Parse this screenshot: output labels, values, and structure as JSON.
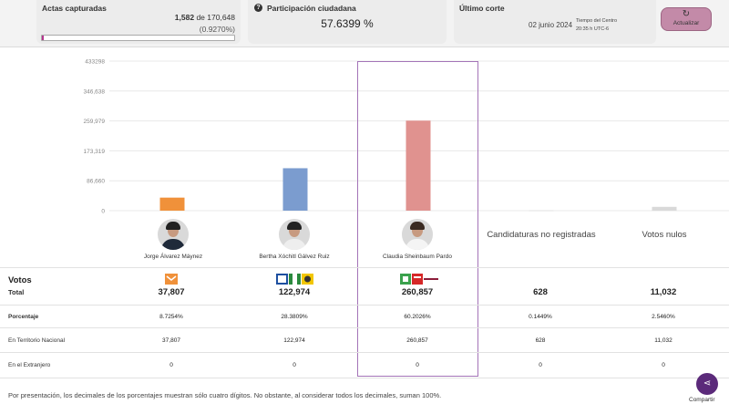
{
  "header": {
    "actas": {
      "title": "Actas capturadas",
      "captured": "1,582",
      "of_label": "de 170,648",
      "percent": "(0.9270%)",
      "progress_fraction": 0.00927
    },
    "participacion": {
      "title": "Participación ciudadana",
      "value": "57.6399 %"
    },
    "corte": {
      "title": "Último corte",
      "date": "02 junio 2024",
      "tz_line1": "Tiempo del Centro",
      "tz_line2": "20:35 h UTC-6"
    },
    "refresh_label": "Actualizar"
  },
  "chart_data": {
    "type": "bar",
    "categories": [
      "Jorge Álvarez Máynez",
      "Bertha Xóchitl Gálvez Ruiz",
      "Claudia Sheinbaum Pardo",
      "Candidaturas no registradas",
      "Votos nulos"
    ],
    "values": [
      37807,
      122974,
      260857,
      628,
      11032
    ],
    "colors": [
      "#f0913a",
      "#7b9ccf",
      "#e0928f",
      "#d9d9d9",
      "#d9d9d9"
    ],
    "yticks": [
      "433298",
      "346,638",
      "259,979",
      "173,319",
      "86,660",
      "0"
    ],
    "ytick_values": [
      433298,
      346638,
      259979,
      173319,
      86660,
      0
    ],
    "ylim": [
      0,
      433298
    ],
    "grid": true
  },
  "candidates": [
    {
      "name": "Jorge Álvarez Máynez"
    },
    {
      "name": "Bertha Xóchitl Gálvez Ruiz"
    },
    {
      "name": "Claudia Sheinbaum Pardo"
    }
  ],
  "extra_columns": [
    "Candidaturas no registradas",
    "Votos nulos"
  ],
  "table": {
    "votos_title": "Votos",
    "total_label": "Total",
    "porcentaje_label": "Porcentaje",
    "nacional_label": "En Territorio Nacional",
    "extranjero_label": "En el Extranjero",
    "totals": [
      "37,807",
      "122,974",
      "260,857",
      "628",
      "11,032"
    ],
    "percents": [
      "8.7254%",
      "28.3809%",
      "60.2026%",
      "0.1449%",
      "2.5460%"
    ],
    "nacional": [
      "37,807",
      "122,974",
      "260,857",
      "628",
      "11,032"
    ],
    "extranjero": [
      "0",
      "0",
      "0",
      "0",
      "0"
    ],
    "party_logos": {
      "col1": [
        "MC"
      ],
      "col2": [
        "PAN",
        "PRI",
        "PRD"
      ],
      "col3": [
        "PVEM",
        "PT",
        "morena"
      ]
    }
  },
  "footer_note": "Por presentación, los decimales de los porcentajes muestran sólo cuatro dígitos. No obstante, al considerar todos los decimales, suman 100%.",
  "share_label": "Compartir"
}
